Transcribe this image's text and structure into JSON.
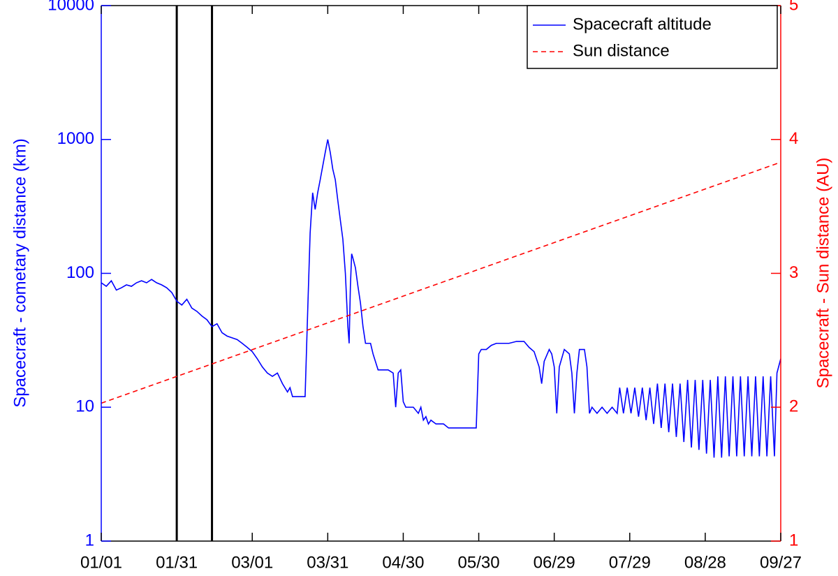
{
  "chart_data": {
    "type": "line",
    "xlabel": null,
    "ylabel": "Spacecraft - cometary distance (km)",
    "y2label": "Spacecraft - Sun distance (AU)",
    "ylog": true,
    "legend": "upper right",
    "xlim": [
      0,
      270
    ],
    "xticks": [
      {
        "value": 0,
        "label": "01/01"
      },
      {
        "value": 30,
        "label": "01/31"
      },
      {
        "value": 60,
        "label": "03/01"
      },
      {
        "value": 90,
        "label": "03/31"
      },
      {
        "value": 120,
        "label": "04/30"
      },
      {
        "value": 150,
        "label": "05/30"
      },
      {
        "value": 180,
        "label": "06/29"
      },
      {
        "value": 210,
        "label": "07/29"
      },
      {
        "value": 240,
        "label": "08/28"
      },
      {
        "value": 270,
        "label": "09/27"
      }
    ],
    "ylim": [
      1,
      10000
    ],
    "yticks": [
      1,
      10,
      100,
      1000,
      10000
    ],
    "y2lim": [
      1,
      5
    ],
    "y2ticks": [
      1,
      2,
      3,
      4,
      5
    ],
    "ycolor": "#0000ff",
    "y2color": "#ff0000",
    "vlines": [
      30,
      44
    ],
    "series": [
      {
        "name": "Spacecraft altitude",
        "color": "#0000ff",
        "dash": "solid",
        "x": [
          0,
          2,
          4,
          6,
          8,
          10,
          12,
          14,
          16,
          18,
          20,
          22,
          24,
          26,
          28,
          30,
          32,
          34,
          36,
          38,
          40,
          42,
          44,
          46,
          48,
          50,
          52,
          54,
          56,
          58,
          60,
          62,
          64,
          66,
          68,
          70,
          72,
          74,
          75,
          76,
          78,
          81,
          82,
          83,
          84,
          85,
          86,
          87,
          89,
          90,
          91,
          92,
          93,
          94,
          95,
          96,
          97,
          98,
          98.5,
          99,
          99.5,
          100,
          101,
          102,
          103,
          104,
          105,
          107,
          108,
          110,
          114,
          116,
          117,
          118,
          119,
          120,
          121,
          124,
          126,
          127,
          128,
          129,
          130,
          131,
          133,
          136,
          138,
          149,
          150,
          151,
          153,
          155,
          157,
          162,
          165,
          168,
          170,
          172,
          174,
          175,
          176,
          178,
          179,
          180,
          181,
          182,
          184,
          186,
          187,
          188,
          189,
          190,
          192,
          193,
          194,
          195,
          197,
          199,
          201,
          203,
          205,
          206,
          207.5,
          209,
          210.5,
          212,
          213.5,
          215,
          216.5,
          218,
          219.5,
          221,
          222.5,
          224,
          225.5,
          227,
          228.5,
          230,
          231.5,
          233,
          234.5,
          236,
          237.5,
          239,
          240.5,
          242,
          243.5,
          245,
          246.5,
          248,
          249.5,
          251,
          252.5,
          254,
          255.5,
          257,
          258.5,
          260,
          261.5,
          263,
          264.5,
          266,
          267.5,
          268.5,
          270
        ],
        "values": [
          85,
          80,
          88,
          75,
          78,
          82,
          80,
          85,
          88,
          85,
          90,
          85,
          82,
          78,
          72,
          62,
          58,
          64,
          55,
          52,
          48,
          45,
          40,
          42,
          36,
          34,
          33,
          32,
          30,
          28,
          26,
          23,
          20,
          18,
          17,
          18,
          15,
          13,
          14,
          12,
          12,
          12,
          50,
          200,
          400,
          300,
          400,
          500,
          800,
          1000,
          800,
          600,
          500,
          350,
          250,
          180,
          100,
          40,
          30,
          80,
          140,
          130,
          110,
          80,
          60,
          40,
          30,
          30,
          25,
          19,
          19,
          18,
          10,
          18,
          19,
          11,
          10,
          10,
          9,
          10,
          8,
          8.5,
          7.5,
          8,
          7.5,
          7.5,
          7,
          7,
          25,
          27,
          27,
          29,
          30,
          30,
          31,
          31,
          28,
          26,
          20,
          15,
          22,
          27,
          25,
          20,
          9,
          20,
          27,
          25,
          18,
          9,
          18,
          27,
          27,
          20,
          9,
          10,
          9,
          10,
          9,
          10,
          9,
          14,
          9,
          14,
          9,
          14,
          8.5,
          14,
          8,
          14,
          7.5,
          15,
          7,
          15,
          6.5,
          15,
          6,
          15,
          5.5,
          16,
          5,
          16,
          4.8,
          16,
          4.5,
          16,
          4.2,
          17,
          4.2,
          17,
          4.3,
          17,
          4.3,
          17,
          4.3,
          17,
          4.3,
          17,
          4.3,
          17,
          4.3,
          17,
          4.3,
          18,
          23
        ]
      },
      {
        "name": "Sun distance",
        "color": "#ff0000",
        "dash": "dashed",
        "axis": "y2",
        "x": [
          0,
          270
        ],
        "values": [
          2.03,
          3.83
        ]
      }
    ]
  }
}
